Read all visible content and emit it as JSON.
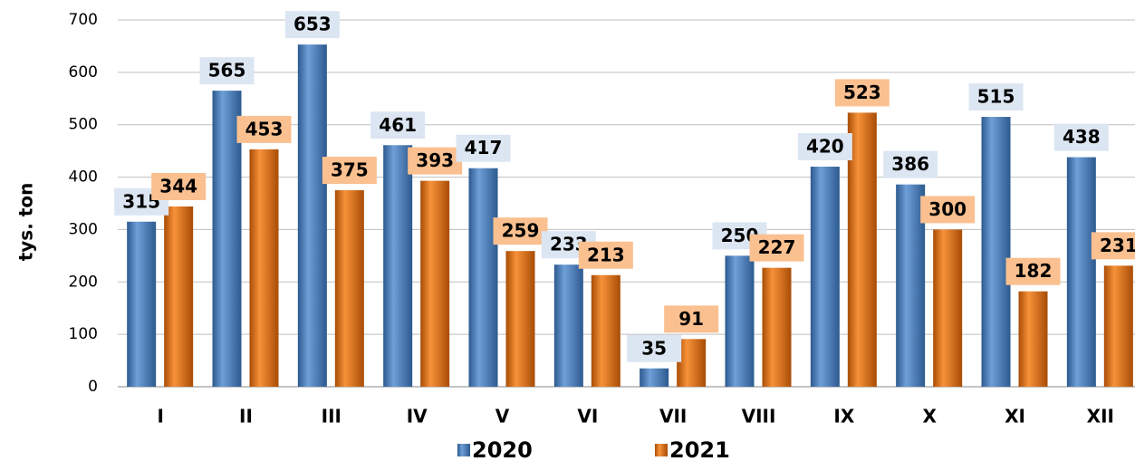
{
  "chart_data": {
    "type": "bar",
    "y_label": "tys. ton",
    "categories": [
      "I",
      "II",
      "III",
      "IV",
      "V",
      "VI",
      "VII",
      "VIII",
      "IX",
      "X",
      "XI",
      "XII"
    ],
    "series": [
      {
        "name": "2020",
        "color": "#4a7ebb",
        "label_color": "#dce6f2",
        "values": [
          315,
          565,
          653,
          461,
          417,
          233,
          35,
          250,
          420,
          386,
          515,
          438
        ]
      },
      {
        "name": "2021",
        "color": "#e46c0a",
        "label_color": "#fac090",
        "values": [
          344,
          453,
          375,
          393,
          259,
          213,
          91,
          227,
          523,
          300,
          182,
          231
        ]
      }
    ],
    "ylim": [
      0,
      700
    ],
    "yticks": [
      0,
      100,
      200,
      300,
      400,
      500,
      600,
      700
    ],
    "grid": true,
    "legend": "bottom"
  }
}
